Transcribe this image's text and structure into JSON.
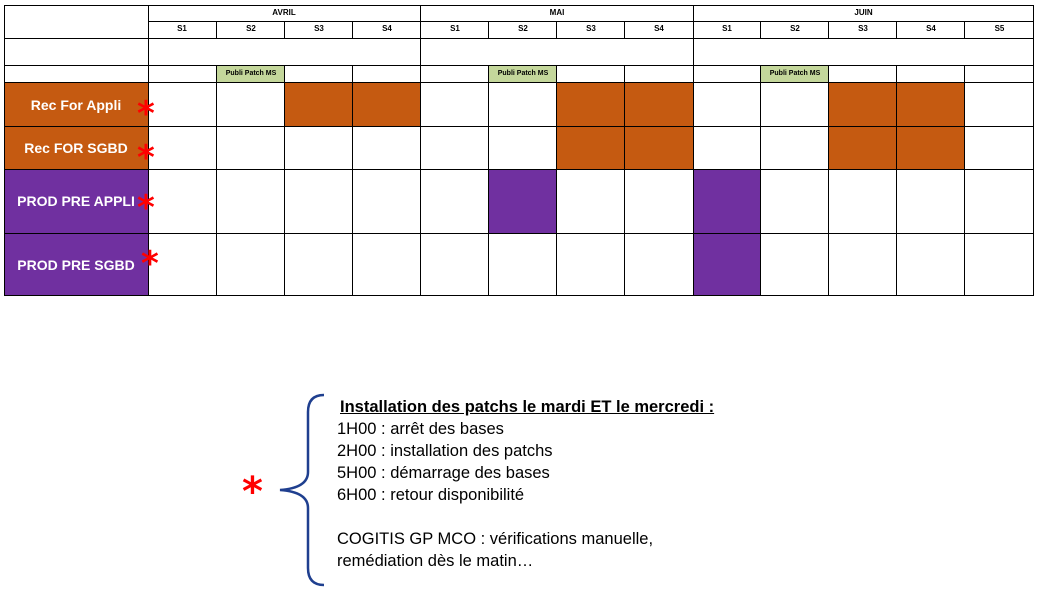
{
  "months": [
    {
      "name": "AVRIL",
      "weeks": [
        "S1",
        "S2",
        "S3",
        "S4"
      ]
    },
    {
      "name": "MAI",
      "weeks": [
        "S1",
        "S2",
        "S3",
        "S4"
      ]
    },
    {
      "name": "JUIN",
      "weeks": [
        "S1",
        "S2",
        "S3",
        "S4",
        "S5"
      ]
    }
  ],
  "publi_label": "Publi Patch MS",
  "rows": [
    {
      "label": "Rec For Appli"
    },
    {
      "label": "Rec FOR SGBD"
    },
    {
      "label": "PROD PRE APPLI"
    },
    {
      "label": "PROD PRE SGBD"
    }
  ],
  "colors": {
    "rec": "#c55a11",
    "prod": "#7030a0",
    "publi": "#c4d79b",
    "star": "#ff0000",
    "brace": "#1f3f8f"
  },
  "star_symbol": "*",
  "note": {
    "title": "Installation des patchs le mardi ET le mercredi :",
    "lines": [
      "1H00 : arrêt des bases",
      "2H00 : installation des patchs",
      "5H00 : démarrage des bases",
      "6H00 : retour disponibilité",
      "",
      "COGITIS GP MCO : vérifications manuelle,",
      "remédiation dès le matin…"
    ]
  }
}
